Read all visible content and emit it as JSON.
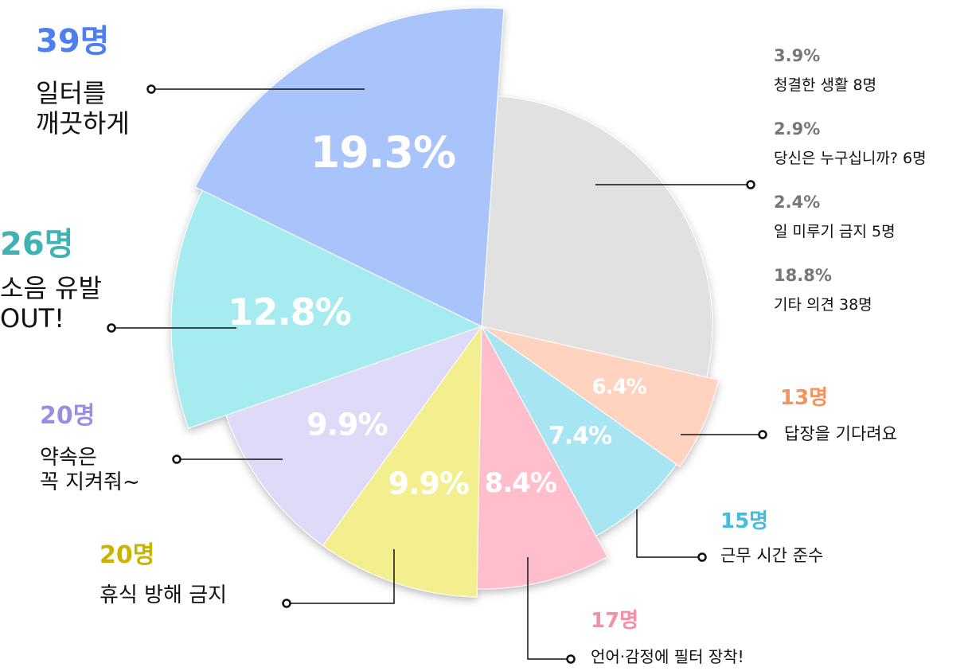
{
  "chart_data": {
    "type": "pie",
    "slices": [
      {
        "name": "답장을 기다려요",
        "value": 6.4,
        "value_label": "6.4%",
        "count_label": "13명",
        "color": "#ffd3bf",
        "label_color": "#f5925e"
      },
      {
        "name": "근무 시간 준수",
        "value": 7.4,
        "value_label": "7.4%",
        "count_label": "15명",
        "color": "#a7e5f3",
        "label_color": "#45bcd9"
      },
      {
        "name": "언어·감정에 필터 장착!",
        "value": 8.4,
        "value_label": "8.4%",
        "count_label": "17명",
        "color": "#ffbecb",
        "label_color": "#f48fa5"
      },
      {
        "name": "휴식 방해 금지",
        "value": 9.9,
        "value_label": "9.9%",
        "count_label": "20명",
        "color": "#f3ef8e",
        "label_color": "#c9b400"
      },
      {
        "name": "약속은\n꼭 지켜줘~",
        "value": 9.9,
        "value_label": "9.9%",
        "count_label": "20명",
        "color": "#dedaf7",
        "label_color": "#9a8ee0"
      },
      {
        "name": "소음 유발\nOUT!",
        "value": 12.8,
        "value_label": "12.8%",
        "count_label": "26명",
        "color": "#a6ebef",
        "label_color": "#3fb3b3"
      },
      {
        "name": "일터를\n깨끗하게",
        "value": 19.3,
        "value_label": "19.3%",
        "count_label": "39명",
        "color": "#a9c3fb",
        "label_color": "#4d7fee"
      }
    ],
    "other": {
      "color": "#e1e1e1",
      "label_color": "#777777",
      "items": [
        {
          "value": 3.9,
          "value_label": "3.9%",
          "name": "청결한 생활 8명"
        },
        {
          "value": 2.9,
          "value_label": "2.9%",
          "name": "당신은 누구십니까? 6명"
        },
        {
          "value": 2.4,
          "value_label": "2.4%",
          "name": "일 미루기 금지  5명"
        },
        {
          "value": 18.8,
          "value_label": "18.8%",
          "name": "기타 의견  38명"
        }
      ]
    }
  }
}
